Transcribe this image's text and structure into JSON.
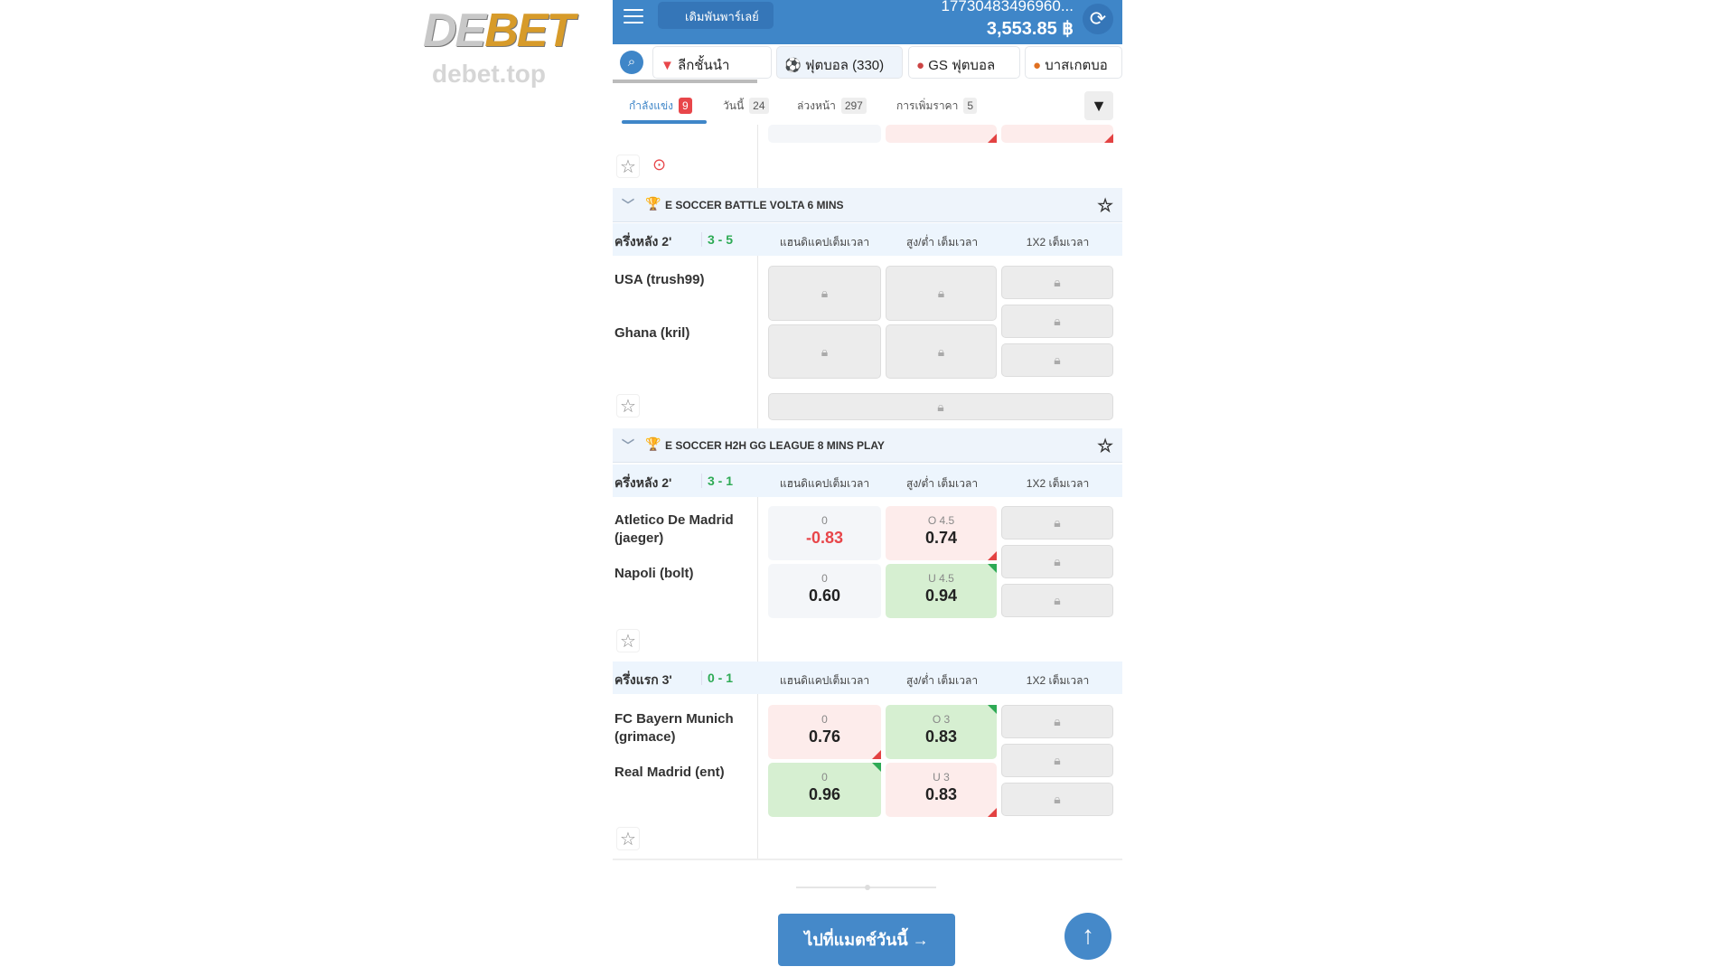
{
  "header": {
    "parlay_label": "เดิมพันพาร์เลย์",
    "account": "17730483496960...",
    "balance": "3,553.85 ฿",
    "logo": "DEBET",
    "watermark": "debet.top"
  },
  "sports": [
    {
      "label": "ลีกชั้นนำ"
    },
    {
      "label": "ฟุตบอล (330)"
    },
    {
      "label": "GS ฟุตบอล"
    },
    {
      "label": "บาสเกตบอ"
    }
  ],
  "tabs": [
    {
      "label": "กำลังแข่ง",
      "count": "9"
    },
    {
      "label": "วันนี้",
      "count": "24"
    },
    {
      "label": "ล่วงหน้า",
      "count": "297"
    },
    {
      "label": "การเพิ่มราคา",
      "count": "5"
    }
  ],
  "columns": [
    "แฮนดิแคปเต็มเวลา",
    "สูง/ต่ำ เต็มเวลา",
    "1X2 เต็มเวลา"
  ],
  "leagues": [
    {
      "name": "E SOCCER BATTLE VOLTA 6 MINS",
      "matches": [
        {
          "period": "ครึ่งหลัง 2'",
          "score": "3 - 5",
          "home": "USA (trush99)",
          "away": "Ghana (kril)"
        }
      ]
    },
    {
      "name": "E SOCCER H2H GG LEAGUE 8 MINS PLAY",
      "matches": [
        {
          "period": "ครึ่งหลัง 2'",
          "score": "3 - 1",
          "home": "Atletico De Madrid (jaeger)",
          "away": "Napoli (bolt)",
          "hdp": [
            {
              "line": "0",
              "odds": "-0.83"
            },
            {
              "line": "0",
              "odds": "0.60"
            }
          ],
          "ou": [
            {
              "line": "O 4.5",
              "odds": "0.74",
              "trend": "down"
            },
            {
              "line": "U 4.5",
              "odds": "0.94",
              "trend": "up"
            }
          ]
        },
        {
          "period": "ครึ่งแรก 3'",
          "score": "0 - 1",
          "home": "FC Bayern Munich (grimace)",
          "away": "Real Madrid (ent)",
          "hdp": [
            {
              "line": "0",
              "odds": "0.76",
              "trend": "down"
            },
            {
              "line": "0",
              "odds": "0.96",
              "trend": "up"
            }
          ],
          "ou": [
            {
              "line": "O 3",
              "odds": "0.83",
              "trend": "up"
            },
            {
              "line": "U 3",
              "odds": "0.83",
              "trend": "down"
            }
          ]
        }
      ]
    }
  ],
  "footer": {
    "goto_label": "ไปที่แมตช์วันนี้ →"
  },
  "colors": {
    "primary": "#3f86c8",
    "up": "#2eaa55",
    "down": "#e34242"
  }
}
